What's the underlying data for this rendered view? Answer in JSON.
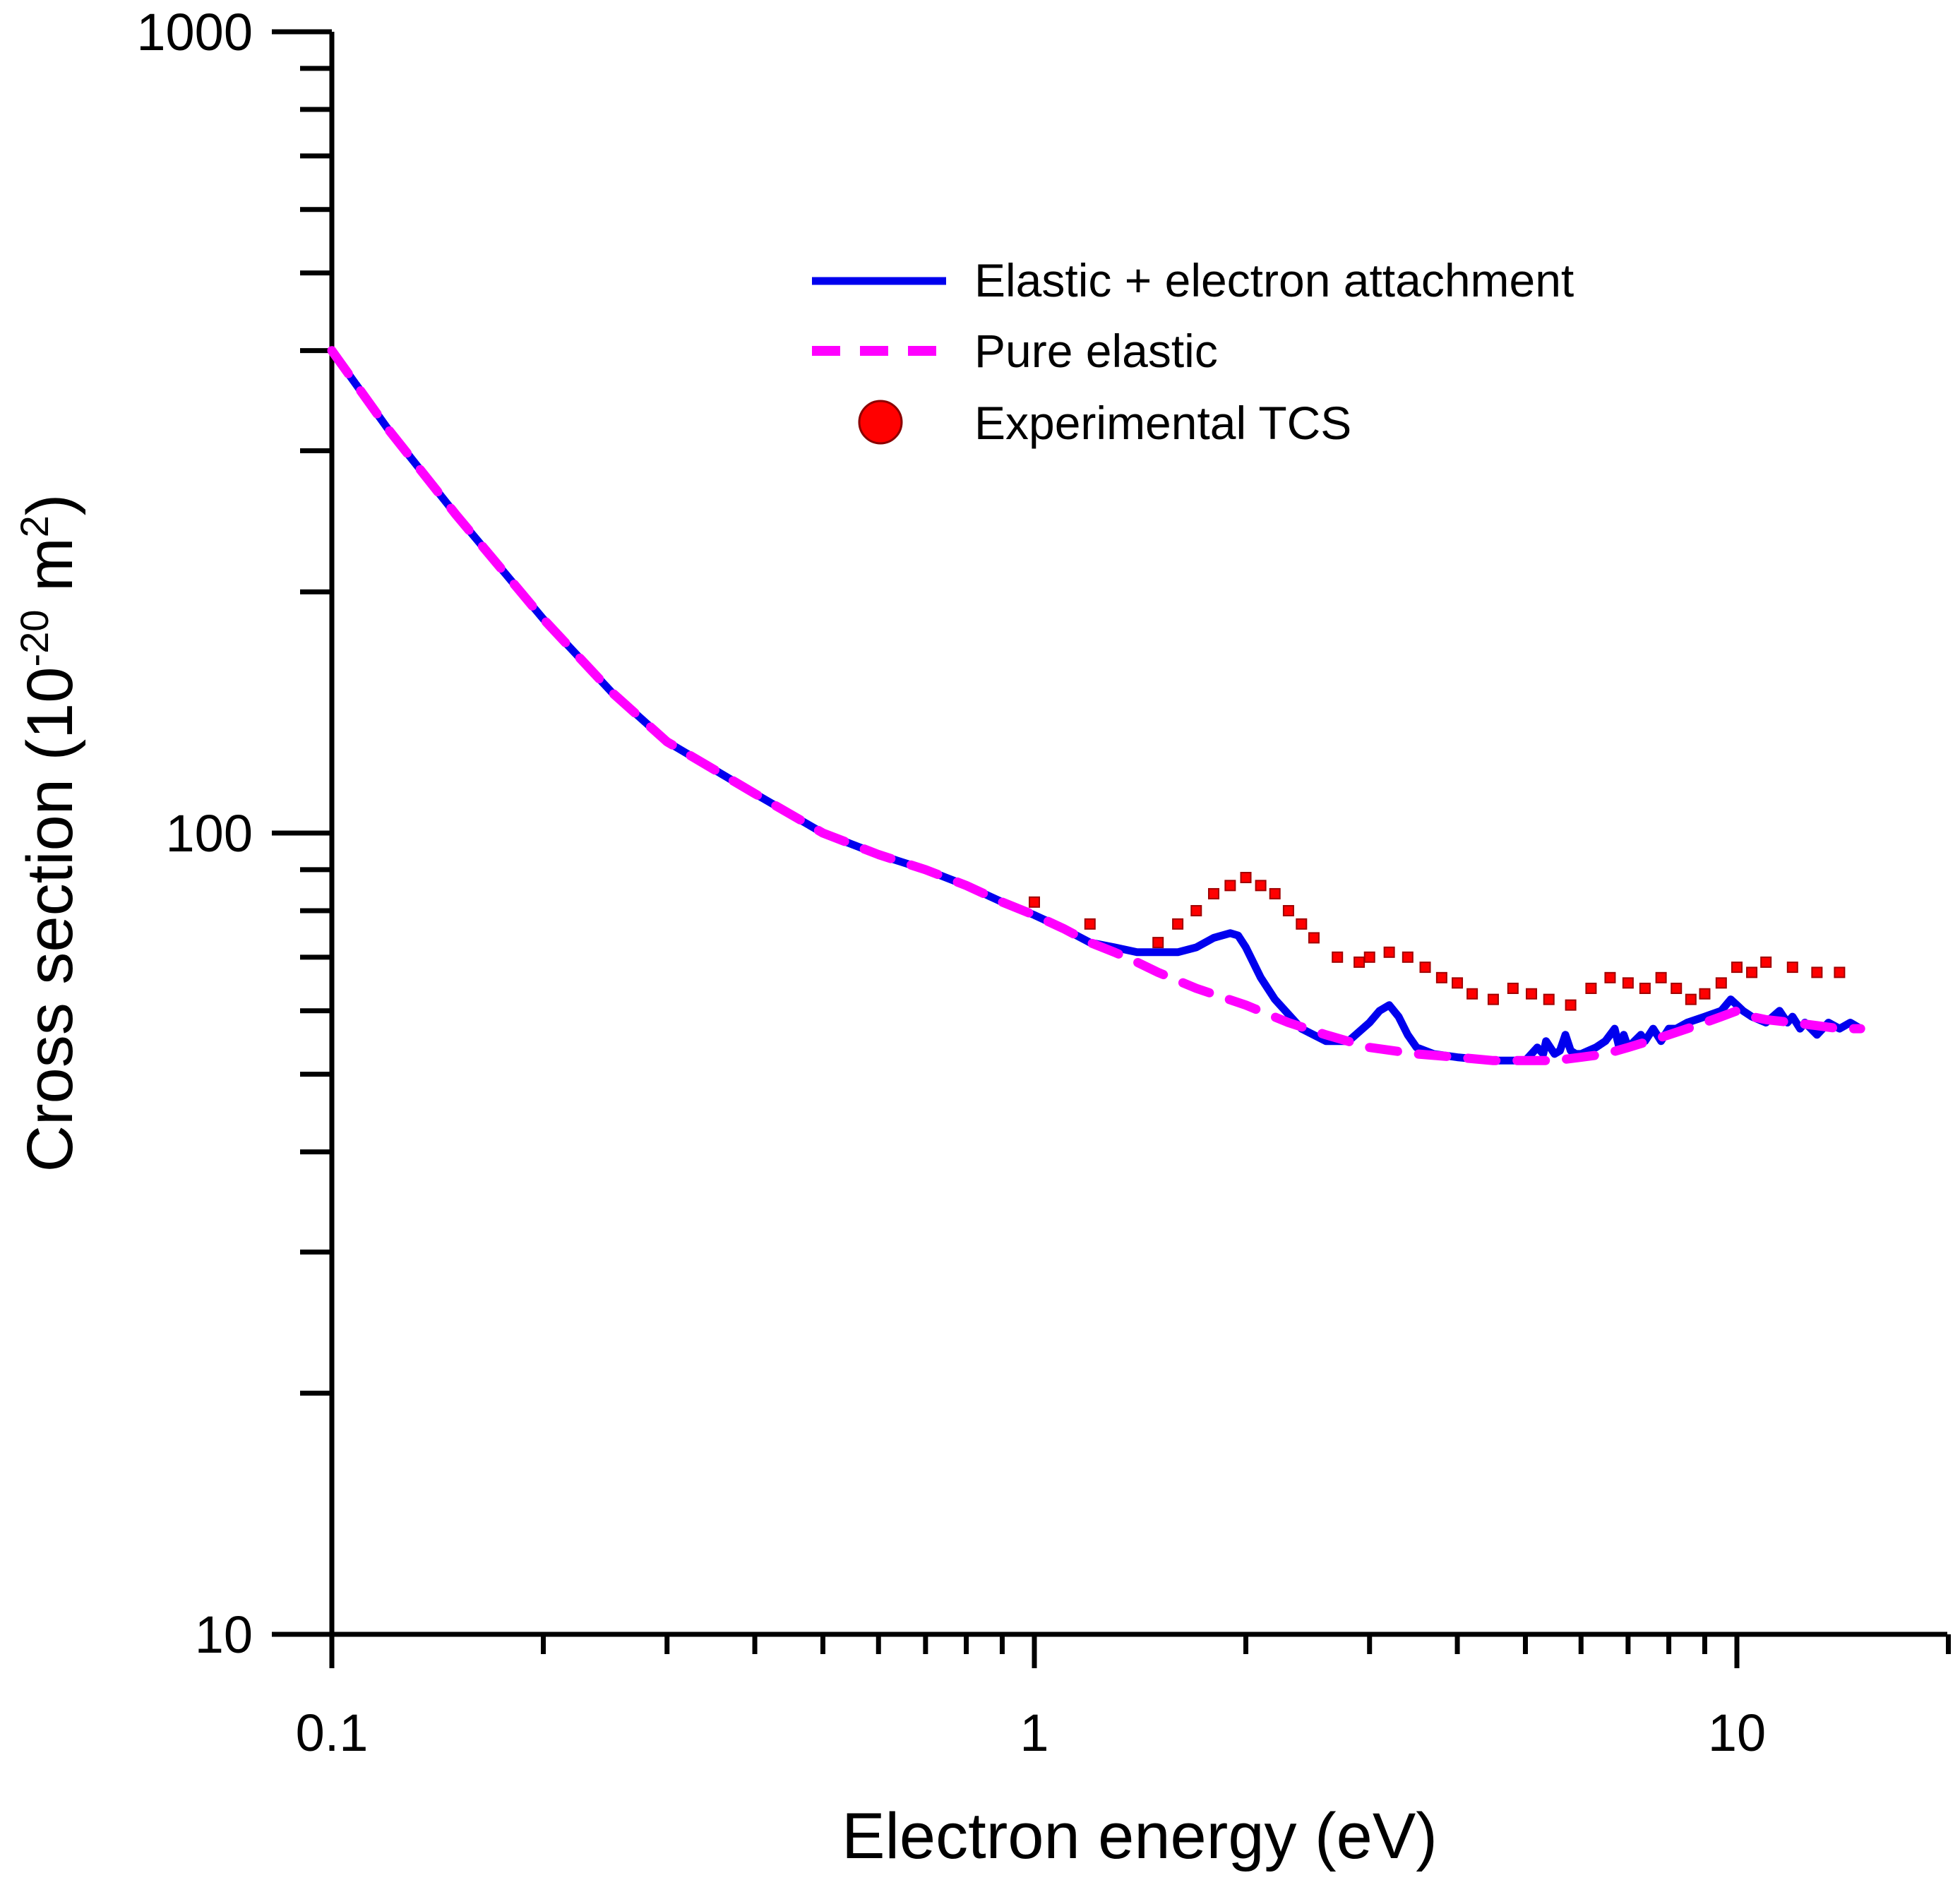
{
  "chart_data": {
    "type": "line",
    "title": "",
    "xlabel": "Electron energy (eV)",
    "ylabel": {
      "base": "Cross section (10",
      "exp1": "-20",
      "mid": " m",
      "exp2": "2",
      "end": ")"
    },
    "xscale": "log",
    "yscale": "log",
    "xlim": [
      0.1,
      20
    ],
    "ylim": [
      10,
      1000
    ],
    "x_tick_labels": [
      {
        "value": 0.1,
        "label": "0.1"
      },
      {
        "value": 1,
        "label": "1"
      },
      {
        "value": 10,
        "label": "10"
      }
    ],
    "y_tick_labels": [
      {
        "value": 10,
        "label": "10"
      },
      {
        "value": 100,
        "label": "100"
      },
      {
        "value": 1000,
        "label": "1000"
      }
    ],
    "grid": false,
    "legend_position": "top-right",
    "series": [
      {
        "name": "Elastic + electron attachment",
        "style": "solid",
        "color": "#0000ee",
        "x": [
          0.1,
          0.12,
          0.15,
          0.2,
          0.25,
          0.3,
          0.4,
          0.5,
          0.6,
          0.7,
          0.8,
          0.9,
          1.0,
          1.1,
          1.2,
          1.3,
          1.4,
          1.5,
          1.6,
          1.7,
          1.8,
          1.9,
          1.95,
          2.0,
          2.1,
          2.2,
          2.4,
          2.6,
          2.8,
          3.0,
          3.1,
          3.2,
          3.3,
          3.4,
          3.5,
          3.7,
          4.0,
          4.5,
          5.0,
          5.2,
          5.3,
          5.35,
          5.5,
          5.6,
          5.7,
          5.8,
          5.9,
          6.0,
          6.3,
          6.5,
          6.7,
          6.8,
          6.9,
          7.0,
          7.3,
          7.4,
          7.6,
          7.8,
          8.0,
          8.2,
          8.5,
          9.0,
          9.5,
          9.8,
          10.0,
          10.2,
          10.5,
          11.0,
          11.5,
          11.8,
          12.0,
          12.3,
          12.5,
          13.0,
          13.5,
          14.0,
          14.5,
          15.0
        ],
        "y": [
          400,
          320,
          250,
          185,
          150,
          130,
          112,
          100,
          94,
          90,
          86,
          82,
          79,
          76,
          73,
          72,
          71,
          71,
          71,
          72,
          74,
          75,
          74.5,
          72,
          66,
          62,
          57,
          55,
          55,
          58,
          60,
          61,
          59,
          56,
          54,
          53,
          52.5,
          52,
          52,
          54,
          53,
          55,
          53,
          53.5,
          56,
          53.5,
          53,
          53,
          54,
          55,
          57,
          54,
          56,
          54,
          56,
          55,
          57,
          55,
          57,
          57,
          58,
          59,
          60,
          62,
          61,
          60,
          59,
          58,
          60,
          58,
          59,
          57,
          58,
          56,
          58,
          57,
          58,
          57
        ]
      },
      {
        "name": "Pure elastic",
        "style": "dashed",
        "color": "#ff00ff",
        "x": [
          0.1,
          0.12,
          0.15,
          0.2,
          0.25,
          0.3,
          0.4,
          0.5,
          0.6,
          0.7,
          0.8,
          0.9,
          1.0,
          1.1,
          1.2,
          1.3,
          1.4,
          1.5,
          1.7,
          2.0,
          2.3,
          2.6,
          3.0,
          3.5,
          4.0,
          4.5,
          5.0,
          5.5,
          6.0,
          6.5,
          7.0,
          7.5,
          8.0,
          8.5,
          9.0,
          9.5,
          10.0,
          10.5,
          11.0,
          12.0,
          13.0,
          14.0,
          15.0
        ],
        "y": [
          400,
          320,
          250,
          185,
          150,
          130,
          112,
          100,
          94,
          90,
          86,
          82,
          79,
          76,
          73,
          71,
          69,
          67,
          64,
          61,
          58,
          56,
          54,
          53,
          52.5,
          52,
          52,
          52,
          52.5,
          53,
          54,
          55,
          56,
          57,
          58,
          59,
          60,
          59,
          58.5,
          58,
          57.5,
          57,
          57
        ]
      },
      {
        "name": "Experimental TCS",
        "style": "markers",
        "color": "#ff0000",
        "x": [
          1.0,
          1.2,
          1.5,
          1.6,
          1.7,
          1.8,
          1.9,
          2.0,
          2.1,
          2.2,
          2.3,
          2.4,
          2.5,
          2.7,
          2.9,
          3.0,
          3.2,
          3.4,
          3.6,
          3.8,
          4.0,
          4.2,
          4.5,
          4.8,
          5.1,
          5.4,
          5.8,
          6.2,
          6.6,
          7.0,
          7.4,
          7.8,
          8.2,
          8.6,
          9.0,
          9.5,
          10.0,
          10.5,
          11.0,
          12.0,
          13.0,
          14.0
        ],
        "y": [
          82,
          77,
          73,
          77,
          80,
          84,
          86,
          88,
          86,
          84,
          80,
          77,
          74,
          70,
          69,
          70,
          71,
          70,
          68,
          66,
          65,
          63,
          62,
          64,
          63,
          62,
          61,
          64,
          66,
          65,
          64,
          66,
          64,
          62,
          63,
          65,
          68,
          67,
          69,
          68,
          67,
          67
        ]
      }
    ]
  }
}
